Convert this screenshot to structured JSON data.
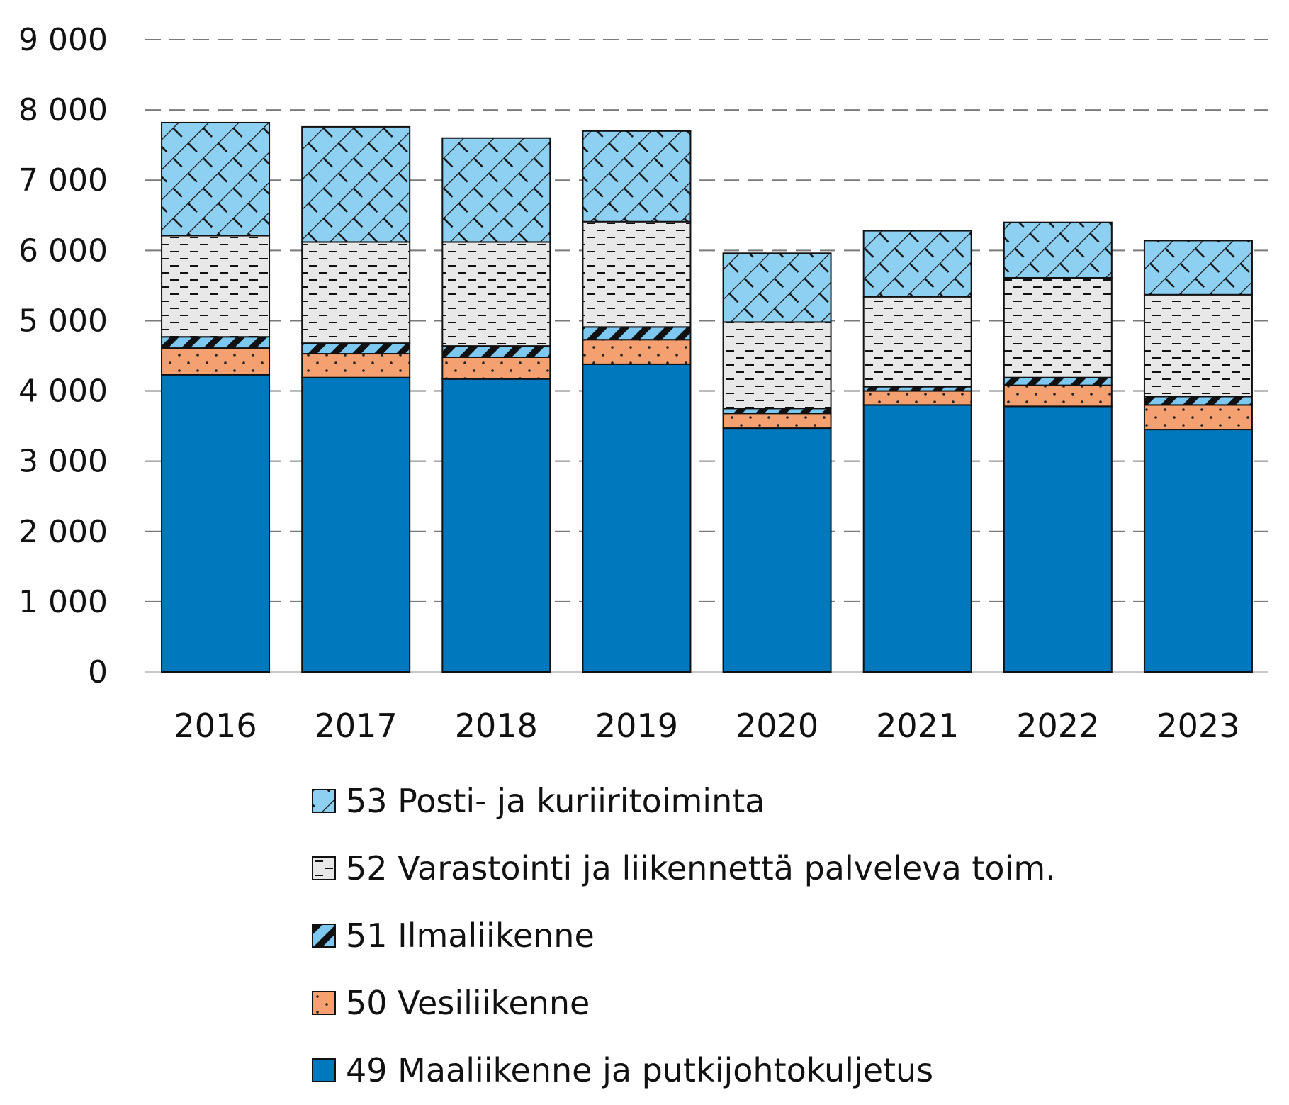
{
  "chart_data": {
    "type": "bar",
    "stacked": true,
    "categories": [
      "2016",
      "2017",
      "2018",
      "2019",
      "2020",
      "2021",
      "2022",
      "2023"
    ],
    "series": [
      {
        "name": "49 Maaliikenne ja putkijohtokuljetus",
        "color": "#0078BE",
        "pattern": "solid",
        "values": [
          4230,
          4190,
          4170,
          4380,
          3470,
          3800,
          3780,
          3450
        ]
      },
      {
        "name": "50 Vesiliikenne",
        "color": "#F4A070",
        "pattern": "dots",
        "values": [
          380,
          340,
          310,
          350,
          210,
          200,
          300,
          350
        ]
      },
      {
        "name": "51 Ilmaliikenne",
        "color": "#7CC8F0",
        "pattern": "diagonal",
        "values": [
          160,
          150,
          160,
          180,
          70,
          60,
          110,
          120
        ]
      },
      {
        "name": "52 Varastointi ja liikennettä palveleva toim.",
        "color": "#E8E8E8",
        "pattern": "dashes",
        "values": [
          1440,
          1440,
          1480,
          1500,
          1230,
          1280,
          1420,
          1450
        ]
      },
      {
        "name": "53 Posti- ja kuriiritoiminta",
        "color": "#8ED0F2",
        "pattern": "crosshatch",
        "values": [
          1610,
          1640,
          1480,
          1290,
          980,
          940,
          790,
          770
        ]
      }
    ],
    "yticks": [
      "0",
      "1 000",
      "2 000",
      "3 000",
      "4 000",
      "5 000",
      "6 000",
      "7 000",
      "8 000",
      "9 000"
    ],
    "ylim": [
      0,
      9000
    ],
    "grid": "dashed-horizontal",
    "legend_position": "bottom",
    "legend_order": [
      4,
      3,
      2,
      1,
      0
    ]
  }
}
